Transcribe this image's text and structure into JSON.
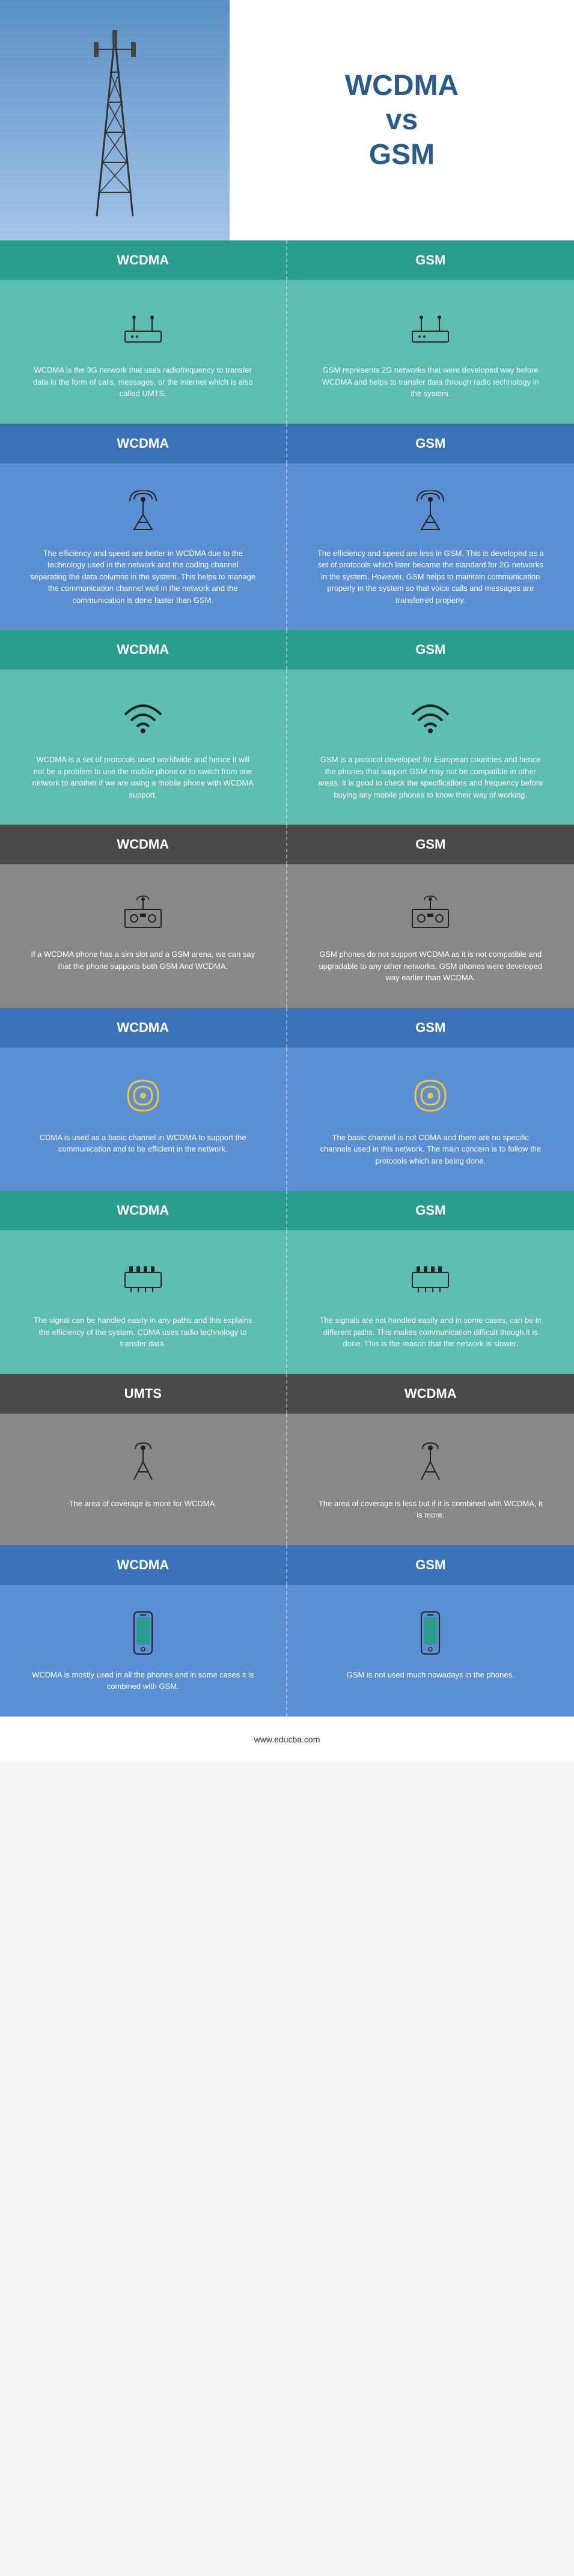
{
  "title_line1": "WCDMA",
  "title_line2": "vs",
  "title_line3": "GSM",
  "title_color": "#2a5a8a",
  "footer": "www.educba.com",
  "sections": [
    {
      "header_bg": "#2a9d8f",
      "content_bg": "#5cbdb0",
      "left_h": "WCDMA",
      "right_h": "GSM",
      "icon": "router",
      "left_desc": "WCDMA is the 3G network that uses radiofrequency to transfer data in the form of calls, messages, or the internet which is also called UMTS.",
      "right_desc": "GSM represents 2G networks that were developed way before WCDMA and helps to transfer data through radio technology in the system."
    },
    {
      "header_bg": "#3a72b8",
      "content_bg": "#5a8fd4",
      "left_h": "WCDMA",
      "right_h": "GSM",
      "icon": "antenna",
      "left_desc": "The efficiency and speed are better in WCDMA due to the technology used in the network and the coding channel separating the data columns in the system. This helps to manage the communication channel well in the network and the communication is done faster than GSM.",
      "right_desc": "The efficiency and speed are less in GSM. This is developed as a set of protocols which later became the standard for 2G networks in the system. However, GSM helps to maintain communication properly in the system so that voice calls and messages are transferred properly."
    },
    {
      "header_bg": "#2a9d8f",
      "content_bg": "#5cbdb0",
      "left_h": "WCDMA",
      "right_h": "GSM",
      "icon": "wifi",
      "left_desc": "WCDMA is a set of protocols used worldwide and hence it will not be a problem to use the mobile phone or to switch from one network to another if we are using a mobile phone with WCDMA support.",
      "right_desc": "GSM is a protocol developed for European countries and hence the phones that support GSM may not be compatible in other areas. It is good to check the specifications and frequency before buying any mobile phones to know their way of working."
    },
    {
      "header_bg": "#4a4a4a",
      "content_bg": "#888888",
      "left_h": "WCDMA",
      "right_h": "GSM",
      "icon": "radio-device",
      "left_desc": "If a WCDMA phone has a sim slot and a GSM arena, we can say that the phone supports both GSM And WCDMA.",
      "right_desc": "GSM phones do not support WCDMA as it is not compatible and upgradable to any other networks. GSM phones were developed way earlier than WCDMA."
    },
    {
      "header_bg": "#3a72b8",
      "content_bg": "#5a8fd4",
      "left_h": "WCDMA",
      "right_h": "GSM",
      "icon": "signal-waves",
      "left_desc": "CDMA is used as a basic channel in WCDMA to support the communication and to be efficient in the network.",
      "right_desc": "The basic channel is not CDMA and there are no specific channels used in this network. The main concern is to follow the protocols which are being done."
    },
    {
      "header_bg": "#2a9d8f",
      "content_bg": "#5cbdb0",
      "left_h": "WCDMA",
      "right_h": "GSM",
      "icon": "chip",
      "left_desc": "The signal can be handled easily in any paths and this explains the efficiency of the system. CDMA uses radio technology to transfer data.",
      "right_desc": "The signals are not handled easily and in some cases, can be in different paths. This makes communication difficult though it is done. This is the reason that the network is slower."
    },
    {
      "header_bg": "#4a4a4a",
      "content_bg": "#888888",
      "left_h": "UMTS",
      "right_h": "WCDMA",
      "icon": "antenna-simple",
      "left_desc": "The area of coverage is more for WCDMA.",
      "right_desc": "The area of coverage is less but if it is combined with WCDMA, it is more."
    },
    {
      "header_bg": "#3a72b8",
      "content_bg": "#5a8fd4",
      "left_h": "WCDMA",
      "right_h": "GSM",
      "icon": "phone",
      "left_desc": "WCDMA is mostly used in all the phones and in some cases it is combined with GSM.",
      "right_desc": "GSM is not used much nowadays in the phones."
    }
  ]
}
